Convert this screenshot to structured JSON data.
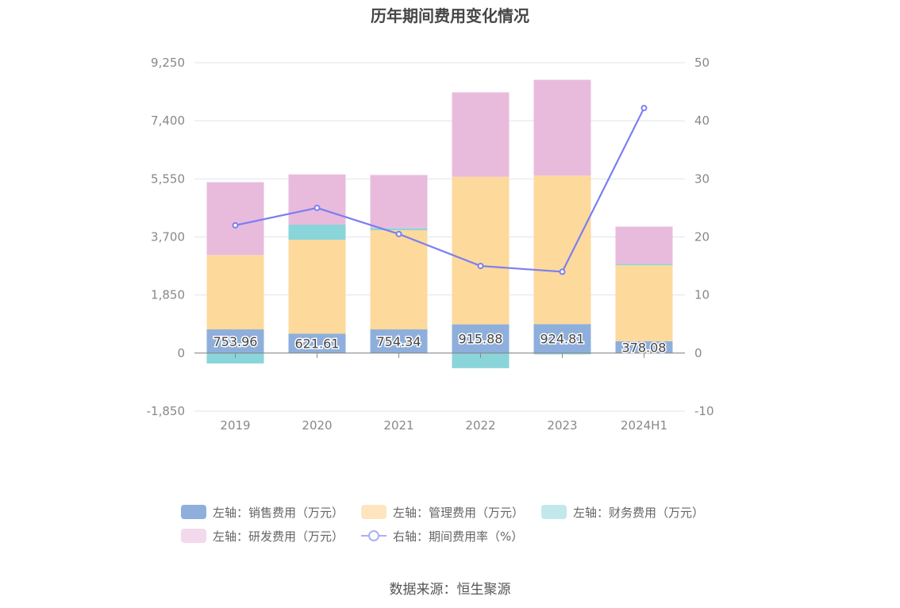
{
  "chart_data": {
    "type": "bar",
    "title": "历年期间费用变化情况",
    "categories": [
      "2019",
      "2020",
      "2021",
      "2022",
      "2023",
      "2024H1"
    ],
    "left_axis": {
      "ylim": [
        -1850,
        9250
      ],
      "ticks": [
        -1850,
        0,
        1850,
        3700,
        5550,
        7400,
        9250
      ],
      "tick_labels": [
        "-1,850",
        "0",
        "1,850",
        "3,700",
        "5,550",
        "7,400",
        "9,250"
      ]
    },
    "right_axis": {
      "ylim": [
        -10,
        50
      ],
      "ticks": [
        -10,
        0,
        10,
        20,
        30,
        40,
        50
      ],
      "tick_labels": [
        "-10",
        "0",
        "10",
        "20",
        "30",
        "40",
        "50"
      ]
    },
    "series": [
      {
        "name": "左轴：销售费用（万元）",
        "type": "bar",
        "axis": "left",
        "color": "#8eafdc",
        "values": [
          753.96,
          621.61,
          754.34,
          915.88,
          924.81,
          378.08
        ],
        "data_labels": [
          "753.96",
          "621.61",
          "754.34",
          "915.88",
          "924.81",
          "378.08"
        ]
      },
      {
        "name": "左轴：管理费用（万元）",
        "type": "bar",
        "axis": "left",
        "color": "#fdd99c",
        "values": [
          2370,
          2990,
          3160,
          4700,
          4730,
          2420
        ]
      },
      {
        "name": "左轴：财务费用（万元）",
        "type": "bar",
        "axis": "left",
        "color": "#89d5da",
        "values": [
          -330,
          480,
          60,
          -480,
          -40,
          40
        ]
      },
      {
        "name": "左轴：研发费用（万元）",
        "type": "bar",
        "axis": "left",
        "color": "#e8bbdd",
        "values": [
          2320,
          1600,
          1700,
          2690,
          3050,
          1190
        ]
      },
      {
        "name": "右轴：期间费用率（%）",
        "type": "line",
        "axis": "right",
        "color": "#7b7ff0",
        "values": [
          22.0,
          25.0,
          20.5,
          15.0,
          14.0,
          42.2
        ]
      }
    ],
    "legend_position": "bottom",
    "grid": true
  },
  "source": "数据来源：恒生聚源"
}
